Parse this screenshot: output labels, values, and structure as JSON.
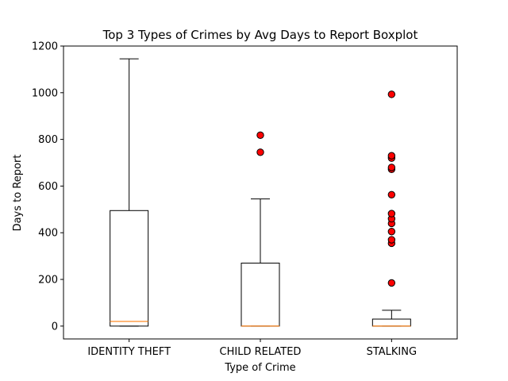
{
  "chart_data": {
    "type": "boxplot",
    "title": "Top 3 Types of Crimes by Avg Days to Report Boxplot",
    "xlabel": "Type of Crime",
    "ylabel": "Days to Report",
    "ylim": [
      -55,
      1200
    ],
    "yticks": [
      0,
      200,
      400,
      600,
      800,
      1000,
      1200
    ],
    "grid": false,
    "categories": [
      "IDENTITY THEFT",
      "CHILD RELATED",
      "STALKING"
    ],
    "boxes": [
      {
        "category": "IDENTITY THEFT",
        "whisker_low": 0,
        "q1": 0,
        "median": 20,
        "q3": 495,
        "whisker_high": 1145,
        "outliers": []
      },
      {
        "category": "CHILD RELATED",
        "whisker_low": 0,
        "q1": 0,
        "median": 0,
        "q3": 270,
        "whisker_high": 545,
        "outliers": [
          745,
          818
        ]
      },
      {
        "category": "STALKING",
        "whisker_low": 0,
        "q1": 0,
        "median": 0,
        "q3": 30,
        "whisker_high": 68,
        "outliers": [
          185,
          355,
          370,
          405,
          440,
          460,
          482,
          563,
          672,
          680,
          720,
          730,
          993
        ]
      }
    ],
    "colors": {
      "box": "#000000",
      "median": "#ff7f0e",
      "outlier_fill": "#ff0000",
      "outlier_edge": "#000000"
    }
  }
}
